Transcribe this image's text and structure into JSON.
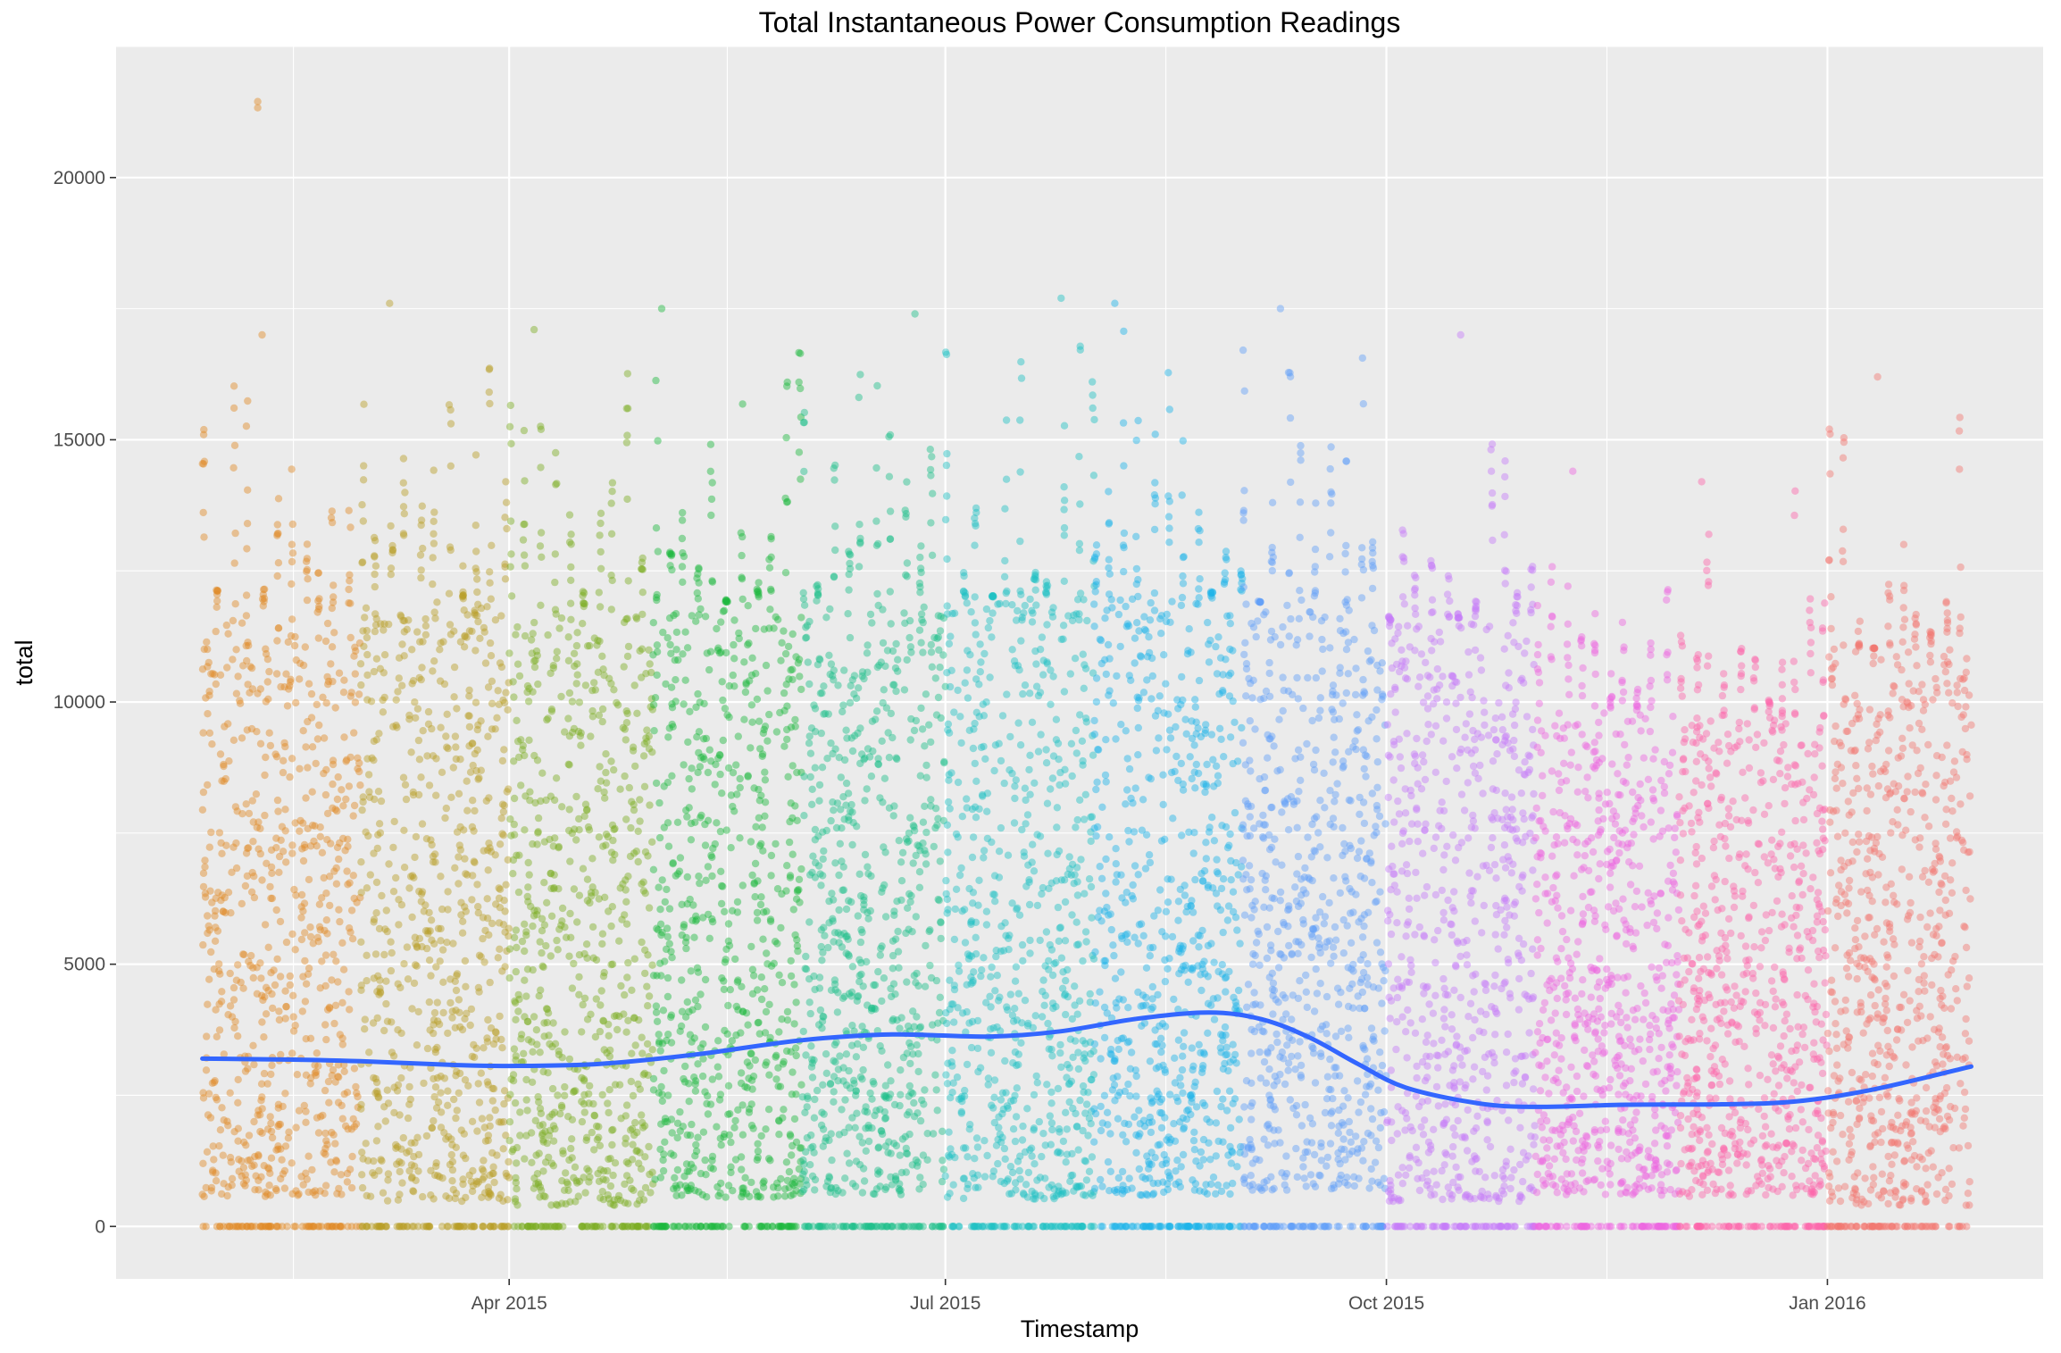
{
  "chart_data": {
    "type": "scatter",
    "title": "Total Instantaneous Power Consumption Readings",
    "xlabel": "Timestamp",
    "ylabel": "total",
    "grid": true,
    "legend": "none",
    "xlim": [
      "2015-01-09",
      "2016-02-15"
    ],
    "ylim": [
      -1000,
      22500
    ],
    "x_ticks": [
      {
        "date": "2015-04-01",
        "label": "Apr 2015"
      },
      {
        "date": "2015-07-01",
        "label": "Jul 2015"
      },
      {
        "date": "2015-10-01",
        "label": "Oct 2015"
      },
      {
        "date": "2016-01-01",
        "label": "Jan 2016"
      }
    ],
    "y_ticks": [
      0,
      5000,
      10000,
      15000,
      20000
    ],
    "groups": [
      {
        "start": "2015-01-27",
        "end": "2015-03-01",
        "color": "#E08A25",
        "max": 17000,
        "outliers": [
          21450
        ]
      },
      {
        "start": "2015-03-01",
        "end": "2015-04-01",
        "color": "#B89E26",
        "max": 17600,
        "outliers": []
      },
      {
        "start": "2015-04-01",
        "end": "2015-05-01",
        "color": "#7CAE24",
        "max": 17100,
        "outliers": []
      },
      {
        "start": "2015-05-01",
        "end": "2015-06-01",
        "color": "#1DB83E",
        "max": 17500,
        "outliers": []
      },
      {
        "start": "2015-06-01",
        "end": "2015-07-01",
        "color": "#1DBF8A",
        "max": 17400,
        "outliers": []
      },
      {
        "start": "2015-07-01",
        "end": "2015-08-01",
        "color": "#1EC0C4",
        "max": 17700,
        "outliers": []
      },
      {
        "start": "2015-08-01",
        "end": "2015-09-01",
        "color": "#1DB3E8",
        "max": 17600,
        "outliers": []
      },
      {
        "start": "2015-09-01",
        "end": "2015-10-01",
        "color": "#629FF8",
        "max": 17500,
        "outliers": []
      },
      {
        "start": "2015-10-01",
        "end": "2015-11-01",
        "color": "#C57CF9",
        "max": 17000,
        "outliers": []
      },
      {
        "start": "2015-11-01",
        "end": "2015-12-01",
        "color": "#EE67DF",
        "max": 14400,
        "outliers": []
      },
      {
        "start": "2015-12-01",
        "end": "2016-01-01",
        "color": "#FD65AA",
        "max": 14200,
        "outliers": []
      },
      {
        "start": "2016-01-01",
        "end": "2016-01-31",
        "color": "#F27772",
        "max": 16200,
        "outliers": []
      }
    ],
    "smooth_series": {
      "color": "#3366FF",
      "points": [
        {
          "x": "2015-01-27",
          "y": 3200
        },
        {
          "x": "2015-02-15",
          "y": 3180
        },
        {
          "x": "2015-03-01",
          "y": 3150
        },
        {
          "x": "2015-03-20",
          "y": 3080
        },
        {
          "x": "2015-04-01",
          "y": 3060
        },
        {
          "x": "2015-04-20",
          "y": 3100
        },
        {
          "x": "2015-05-10",
          "y": 3280
        },
        {
          "x": "2015-06-01",
          "y": 3550
        },
        {
          "x": "2015-06-20",
          "y": 3660
        },
        {
          "x": "2015-07-10",
          "y": 3620
        },
        {
          "x": "2015-07-25",
          "y": 3720
        },
        {
          "x": "2015-08-10",
          "y": 3960
        },
        {
          "x": "2015-08-25",
          "y": 4080
        },
        {
          "x": "2015-09-05",
          "y": 3950
        },
        {
          "x": "2015-09-15",
          "y": 3600
        },
        {
          "x": "2015-09-25",
          "y": 3100
        },
        {
          "x": "2015-10-05",
          "y": 2650
        },
        {
          "x": "2015-10-20",
          "y": 2350
        },
        {
          "x": "2015-11-01",
          "y": 2280
        },
        {
          "x": "2015-11-20",
          "y": 2320
        },
        {
          "x": "2015-12-10",
          "y": 2330
        },
        {
          "x": "2015-12-25",
          "y": 2380
        },
        {
          "x": "2016-01-10",
          "y": 2600
        },
        {
          "x": "2016-01-31",
          "y": 3050
        }
      ]
    }
  }
}
